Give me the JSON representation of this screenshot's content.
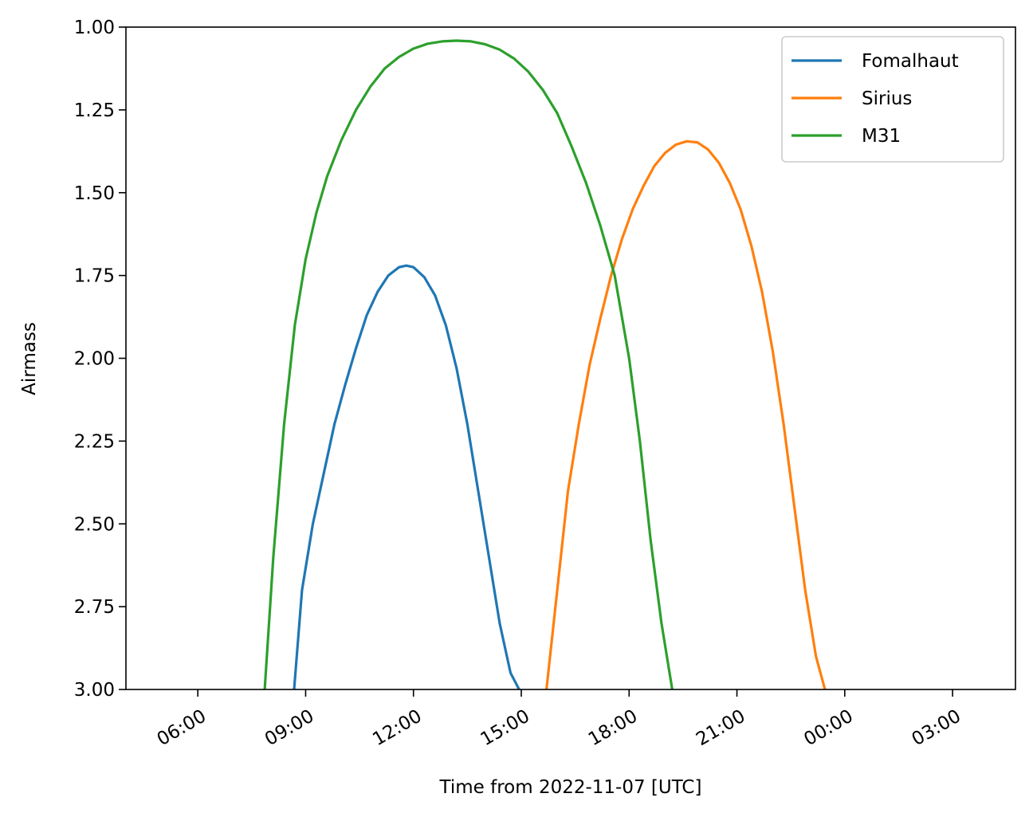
{
  "chart_data": {
    "type": "line",
    "title": "",
    "xlabel": "Time from 2022-11-07 [UTC]",
    "ylabel": "Airmass",
    "x_unit": "hours from 2022-11-07 00:00 UTC",
    "xlim": [
      4.0,
      28.75
    ],
    "ylim": [
      3.0,
      1.0
    ],
    "y_inverted": true,
    "x_ticks": [
      6,
      9,
      12,
      15,
      18,
      21,
      24,
      27
    ],
    "x_tick_labels": [
      "06:00",
      "09:00",
      "12:00",
      "15:00",
      "18:00",
      "21:00",
      "00:00",
      "03:00"
    ],
    "y_ticks": [
      1.0,
      1.25,
      1.5,
      1.75,
      2.0,
      2.25,
      2.5,
      2.75,
      3.0
    ],
    "y_tick_labels": [
      "1.00",
      "1.25",
      "1.50",
      "1.75",
      "2.00",
      "2.25",
      "2.50",
      "2.75",
      "3.00"
    ],
    "legend_placement": "top-right",
    "grid": false,
    "series": [
      {
        "name": "Fomalhaut",
        "color": "#1f77b4",
        "x": [
          8.68,
          8.9,
          9.2,
          9.5,
          9.8,
          10.1,
          10.4,
          10.7,
          11.0,
          11.3,
          11.6,
          11.8,
          12.0,
          12.3,
          12.6,
          12.9,
          13.2,
          13.5,
          13.8,
          14.1,
          14.4,
          14.7,
          14.94
        ],
        "y": [
          3.0,
          2.7,
          2.5,
          2.35,
          2.2,
          2.08,
          1.97,
          1.87,
          1.8,
          1.75,
          1.725,
          1.72,
          1.725,
          1.755,
          1.81,
          1.9,
          2.03,
          2.2,
          2.4,
          2.6,
          2.8,
          2.95,
          3.0
        ]
      },
      {
        "name": "Sirius",
        "color": "#ff7f0e",
        "x": [
          15.7,
          16.0,
          16.3,
          16.6,
          16.9,
          17.2,
          17.5,
          17.8,
          18.1,
          18.4,
          18.7,
          19.0,
          19.3,
          19.6,
          19.9,
          20.2,
          20.5,
          20.8,
          21.1,
          21.4,
          21.7,
          22.0,
          22.3,
          22.6,
          22.9,
          23.2,
          23.45
        ],
        "y": [
          3.0,
          2.7,
          2.4,
          2.2,
          2.02,
          1.88,
          1.75,
          1.64,
          1.55,
          1.48,
          1.42,
          1.38,
          1.355,
          1.345,
          1.348,
          1.37,
          1.41,
          1.47,
          1.55,
          1.66,
          1.8,
          1.98,
          2.2,
          2.45,
          2.7,
          2.9,
          3.0
        ]
      },
      {
        "name": "M31",
        "color": "#2ca02c",
        "x": [
          7.86,
          8.1,
          8.4,
          8.7,
          9.0,
          9.3,
          9.6,
          10.0,
          10.4,
          10.8,
          11.2,
          11.6,
          12.0,
          12.4,
          12.8,
          13.2,
          13.6,
          14.0,
          14.4,
          14.8,
          15.2,
          15.6,
          16.0,
          16.4,
          16.8,
          17.2,
          17.6,
          18.0,
          18.3,
          18.6,
          18.9,
          19.2
        ],
        "y": [
          3.0,
          2.6,
          2.2,
          1.9,
          1.7,
          1.56,
          1.45,
          1.34,
          1.25,
          1.18,
          1.125,
          1.09,
          1.065,
          1.05,
          1.043,
          1.041,
          1.043,
          1.052,
          1.068,
          1.095,
          1.135,
          1.19,
          1.26,
          1.36,
          1.47,
          1.6,
          1.75,
          2.0,
          2.25,
          2.55,
          2.8,
          3.0
        ]
      }
    ]
  }
}
